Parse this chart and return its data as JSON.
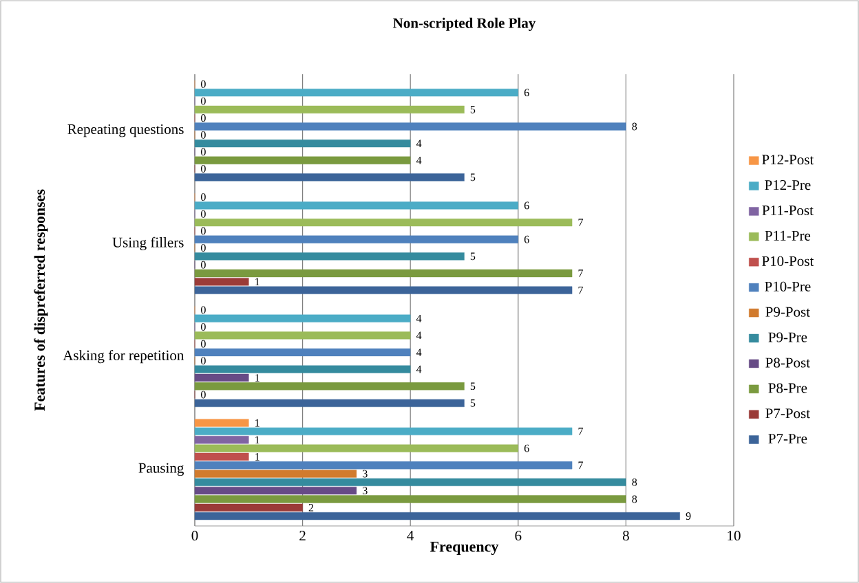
{
  "chart_data": {
    "type": "bar",
    "orientation": "horizontal",
    "title": "Non-scripted Role Play",
    "xlabel": "Frequency",
    "ylabel": "Features of dispreferred responses",
    "categories": [
      "Repeating questions",
      "Using fillers",
      "Asking for repetition",
      "Pausing"
    ],
    "series": [
      {
        "name": "P7-Pre",
        "color": "#3c6499",
        "values": [
          5,
          7,
          5,
          9
        ]
      },
      {
        "name": "P7-Post",
        "color": "#9b3b38",
        "values": [
          0,
          1,
          0,
          2
        ]
      },
      {
        "name": "P8-Pre",
        "color": "#7a9a3f",
        "values": [
          4,
          7,
          5,
          8
        ]
      },
      {
        "name": "P8-Post",
        "color": "#674b86",
        "values": [
          0,
          0,
          1,
          3
        ]
      },
      {
        "name": "P9-Pre",
        "color": "#358b9e",
        "values": [
          4,
          5,
          4,
          8
        ]
      },
      {
        "name": "P9-Post",
        "color": "#d17b2e",
        "values": [
          0,
          0,
          0,
          3
        ]
      },
      {
        "name": "P10-Pre",
        "color": "#4f81bd",
        "values": [
          8,
          6,
          4,
          7
        ]
      },
      {
        "name": "P10-Post",
        "color": "#c0504d",
        "values": [
          0,
          0,
          0,
          1
        ]
      },
      {
        "name": "P11-Pre",
        "color": "#9bbb59",
        "values": [
          5,
          7,
          4,
          6
        ]
      },
      {
        "name": "P11-Post",
        "color": "#8064a2",
        "values": [
          0,
          0,
          0,
          1
        ]
      },
      {
        "name": "P12-Pre",
        "color": "#4bacc6",
        "values": [
          6,
          6,
          4,
          7
        ]
      },
      {
        "name": "P12-Post",
        "color": "#f79646",
        "values": [
          0,
          0,
          0,
          1
        ]
      }
    ],
    "xlim": [
      0,
      10
    ],
    "xticks": [
      0,
      2,
      4,
      6,
      8,
      10
    ],
    "grid": "x",
    "legend": "right",
    "data_labels": true
  }
}
